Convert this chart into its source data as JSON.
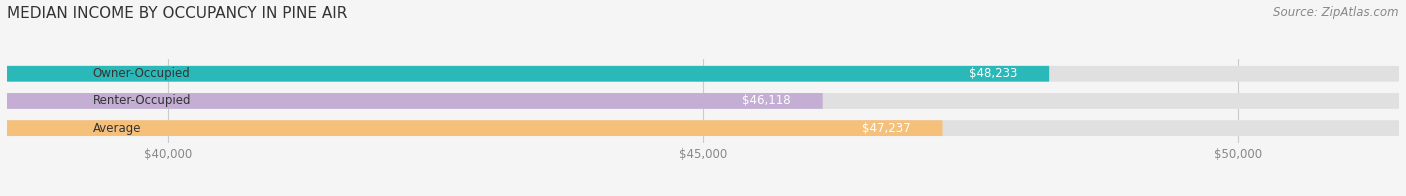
{
  "title": "MEDIAN INCOME BY OCCUPANCY IN PINE AIR",
  "source": "Source: ZipAtlas.com",
  "categories": [
    "Owner-Occupied",
    "Renter-Occupied",
    "Average"
  ],
  "values": [
    48233,
    46118,
    47237
  ],
  "bar_colors": [
    "#2ab8b8",
    "#c4aed4",
    "#f5c07a"
  ],
  "value_labels": [
    "$48,233",
    "$46,118",
    "$47,237"
  ],
  "xlim": [
    38500,
    51500
  ],
  "xticks": [
    40000,
    45000,
    50000
  ],
  "xtick_labels": [
    "$40,000",
    "$45,000",
    "$50,000"
  ],
  "bar_height": 0.58,
  "background_color": "#f5f5f5",
  "bar_bg_color": "#e0e0e0",
  "title_fontsize": 11,
  "source_fontsize": 8.5,
  "label_fontsize": 8.5,
  "tick_fontsize": 8.5
}
